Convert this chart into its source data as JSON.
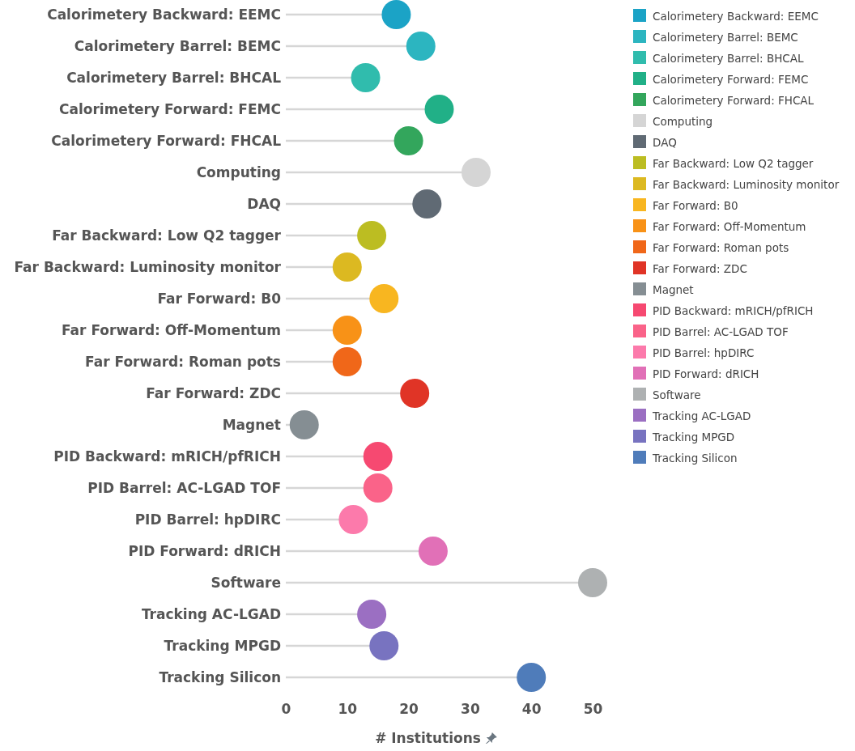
{
  "chart_data": {
    "type": "lollipop",
    "orientation": "horizontal",
    "xlabel": "# Institutions",
    "xlim": [
      0,
      50
    ],
    "xticks": [
      0,
      10,
      20,
      30,
      40,
      50
    ],
    "legend": "right",
    "marker": "circle",
    "categories": [
      "Calorimetery Backward: EEMC",
      "Calorimetery Barrel: BEMC",
      "Calorimetery Barrel: BHCAL",
      "Calorimetery Forward: FEMC",
      "Calorimetery Forward: FHCAL",
      "Computing",
      "DAQ",
      "Far Backward: Low Q2 tagger",
      "Far Backward: Luminosity monitor",
      "Far Forward: B0",
      "Far Forward: Off-Momentum",
      "Far Forward: Roman pots",
      "Far Forward: ZDC",
      "Magnet",
      "PID Backward: mRICH/pfRICH",
      "PID Barrel: AC-LGAD TOF",
      "PID Barrel: hpDIRC",
      "PID Forward: dRICH",
      "Software",
      "Tracking AC-LGAD",
      "Tracking MPGD",
      "Tracking Silicon"
    ],
    "series": [
      {
        "name": "Calorimetery Backward: EEMC",
        "color": "#1ba3c6",
        "values": [
          18,
          null,
          null,
          null,
          null,
          null,
          null,
          null,
          null,
          null,
          null,
          null,
          null,
          null,
          null,
          null,
          null,
          null,
          null,
          null,
          null,
          null
        ]
      },
      {
        "name": "Calorimetery Barrel: BEMC",
        "color": "#2cb5c0",
        "values": [
          null,
          22,
          null,
          null,
          null,
          null,
          null,
          null,
          null,
          null,
          null,
          null,
          null,
          null,
          null,
          null,
          null,
          null,
          null,
          null,
          null,
          null
        ]
      },
      {
        "name": "Calorimetery Barrel: BHCAL",
        "color": "#30bcad",
        "values": [
          null,
          null,
          13,
          null,
          null,
          null,
          null,
          null,
          null,
          null,
          null,
          null,
          null,
          null,
          null,
          null,
          null,
          null,
          null,
          null,
          null,
          null
        ]
      },
      {
        "name": "Calorimetery Forward: FEMC",
        "color": "#21b087",
        "values": [
          null,
          null,
          null,
          25,
          null,
          null,
          null,
          null,
          null,
          null,
          null,
          null,
          null,
          null,
          null,
          null,
          null,
          null,
          null,
          null,
          null,
          null
        ]
      },
      {
        "name": "Calorimetery Forward: FHCAL",
        "color": "#33a65c",
        "values": [
          null,
          null,
          null,
          null,
          20,
          null,
          null,
          null,
          null,
          null,
          null,
          null,
          null,
          null,
          null,
          null,
          null,
          null,
          null,
          null,
          null,
          null
        ]
      },
      {
        "name": "Computing",
        "color": "#d5d5d5",
        "values": [
          null,
          null,
          null,
          null,
          null,
          31,
          null,
          null,
          null,
          null,
          null,
          null,
          null,
          null,
          null,
          null,
          null,
          null,
          null,
          null,
          null,
          null
        ]
      },
      {
        "name": "DAQ",
        "color": "#606a74",
        "values": [
          null,
          null,
          null,
          null,
          null,
          null,
          23,
          null,
          null,
          null,
          null,
          null,
          null,
          null,
          null,
          null,
          null,
          null,
          null,
          null,
          null,
          null
        ]
      },
      {
        "name": "Far Backward: Low Q2 tagger",
        "color": "#bcbd22",
        "values": [
          null,
          null,
          null,
          null,
          null,
          null,
          null,
          14,
          null,
          null,
          null,
          null,
          null,
          null,
          null,
          null,
          null,
          null,
          null,
          null,
          null,
          null
        ]
      },
      {
        "name": "Far Backward: Luminosity monitor",
        "color": "#dcb921",
        "values": [
          null,
          null,
          null,
          null,
          null,
          null,
          null,
          null,
          10,
          null,
          null,
          null,
          null,
          null,
          null,
          null,
          null,
          null,
          null,
          null,
          null,
          null
        ]
      },
      {
        "name": "Far Forward: B0",
        "color": "#f8b620",
        "values": [
          null,
          null,
          null,
          null,
          null,
          null,
          null,
          null,
          null,
          16,
          null,
          null,
          null,
          null,
          null,
          null,
          null,
          null,
          null,
          null,
          null,
          null
        ]
      },
      {
        "name": "Far Forward: Off-Momentum",
        "color": "#f89217",
        "values": [
          null,
          null,
          null,
          null,
          null,
          null,
          null,
          null,
          null,
          null,
          10,
          null,
          null,
          null,
          null,
          null,
          null,
          null,
          null,
          null,
          null,
          null
        ]
      },
      {
        "name": "Far Forward: Roman pots",
        "color": "#f06719",
        "values": [
          null,
          null,
          null,
          null,
          null,
          null,
          null,
          null,
          null,
          null,
          null,
          10,
          null,
          null,
          null,
          null,
          null,
          null,
          null,
          null,
          null,
          null
        ]
      },
      {
        "name": "Far Forward: ZDC",
        "color": "#e03426",
        "values": [
          null,
          null,
          null,
          null,
          null,
          null,
          null,
          null,
          null,
          null,
          null,
          null,
          21,
          null,
          null,
          null,
          null,
          null,
          null,
          null,
          null,
          null
        ]
      },
      {
        "name": "Magnet",
        "color": "#858e93",
        "values": [
          null,
          null,
          null,
          null,
          null,
          null,
          null,
          null,
          null,
          null,
          null,
          null,
          null,
          3,
          null,
          null,
          null,
          null,
          null,
          null,
          null,
          null
        ]
      },
      {
        "name": "PID Backward: mRICH/pfRICH",
        "color": "#f64971",
        "values": [
          null,
          null,
          null,
          null,
          null,
          null,
          null,
          null,
          null,
          null,
          null,
          null,
          null,
          null,
          15,
          null,
          null,
          null,
          null,
          null,
          null,
          null
        ]
      },
      {
        "name": "PID Barrel: AC-LGAD TOF",
        "color": "#fa6389",
        "values": [
          null,
          null,
          null,
          null,
          null,
          null,
          null,
          null,
          null,
          null,
          null,
          null,
          null,
          null,
          null,
          15,
          null,
          null,
          null,
          null,
          null,
          null
        ]
      },
      {
        "name": "PID Barrel: hpDIRC",
        "color": "#fc7aab",
        "values": [
          null,
          null,
          null,
          null,
          null,
          null,
          null,
          null,
          null,
          null,
          null,
          null,
          null,
          null,
          null,
          null,
          11,
          null,
          null,
          null,
          null,
          null
        ]
      },
      {
        "name": "PID Forward: dRICH",
        "color": "#e170b7",
        "values": [
          null,
          null,
          null,
          null,
          null,
          null,
          null,
          null,
          null,
          null,
          null,
          null,
          null,
          null,
          null,
          null,
          null,
          24,
          null,
          null,
          null,
          null
        ]
      },
      {
        "name": "Software",
        "color": "#aeb1b2",
        "values": [
          null,
          null,
          null,
          null,
          null,
          null,
          null,
          null,
          null,
          null,
          null,
          null,
          null,
          null,
          null,
          null,
          null,
          null,
          50,
          null,
          null,
          null
        ]
      },
      {
        "name": "Tracking AC-LGAD",
        "color": "#9b6fc2",
        "values": [
          null,
          null,
          null,
          null,
          null,
          null,
          null,
          null,
          null,
          null,
          null,
          null,
          null,
          null,
          null,
          null,
          null,
          null,
          null,
          14,
          null,
          null
        ]
      },
      {
        "name": "Tracking MPGD",
        "color": "#7873c0",
        "values": [
          null,
          null,
          null,
          null,
          null,
          null,
          null,
          null,
          null,
          null,
          null,
          null,
          null,
          null,
          null,
          null,
          null,
          null,
          null,
          null,
          16,
          null
        ]
      },
      {
        "name": "Tracking Silicon",
        "color": "#4f7cba",
        "values": [
          null,
          null,
          null,
          null,
          null,
          null,
          null,
          null,
          null,
          null,
          null,
          null,
          null,
          null,
          null,
          null,
          null,
          null,
          null,
          null,
          null,
          40
        ]
      }
    ]
  }
}
